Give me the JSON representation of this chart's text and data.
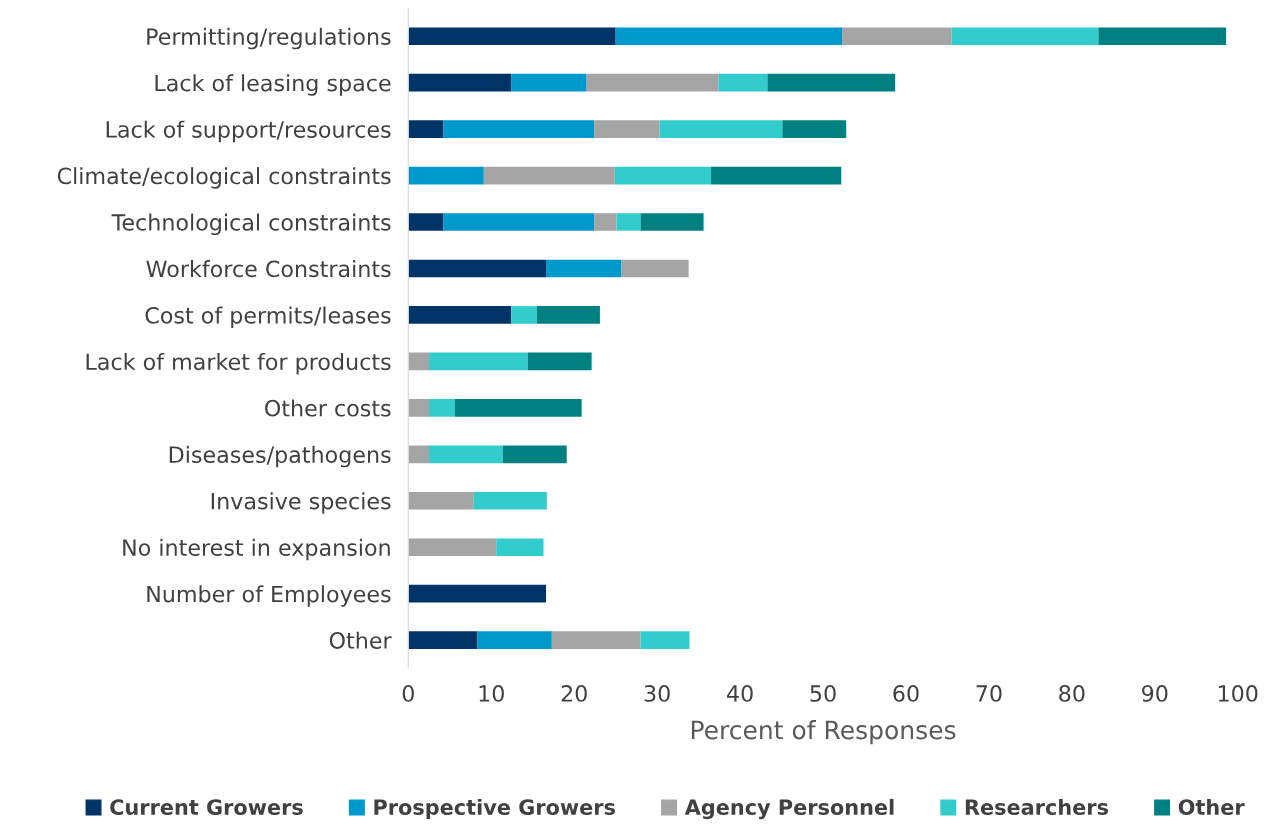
{
  "chart_data": {
    "type": "bar",
    "orientation": "horizontal",
    "stacked": true,
    "xlabel": "Percent of Responses",
    "categories": [
      "Permitting/regulations",
      "Lack of leasing space",
      "Lack of support/resources",
      "Climate/ecological constraints",
      "Technological constraints",
      "Workforce Constraints",
      "Cost of permits/leases",
      "Lack of market for products",
      "Other costs",
      "Diseases/pathogens",
      "Invasive species",
      "No interest in expansion",
      "Number of Employees",
      "Other"
    ],
    "series": [
      {
        "name": "Current Growers",
        "color": "#003366",
        "values": [
          25.0,
          12.4,
          4.2,
          null,
          4.2,
          16.6,
          12.4,
          null,
          null,
          null,
          null,
          null,
          16.6,
          8.3
        ]
      },
      {
        "name": "Prospective Growers",
        "color": "#0099cc",
        "values": [
          27.3,
          9.1,
          18.2,
          9.1,
          18.2,
          9.1,
          null,
          null,
          null,
          null,
          null,
          null,
          null,
          9.0
        ]
      },
      {
        "name": "Agency Personnel",
        "color": "#a5a5a5",
        "values": [
          13.2,
          15.9,
          7.9,
          15.8,
          2.7,
          8.1,
          null,
          2.5,
          2.5,
          2.5,
          7.9,
          10.6,
          null,
          10.7
        ]
      },
      {
        "name": "Researchers",
        "color": "#33cccc",
        "values": [
          17.7,
          5.9,
          14.8,
          11.6,
          2.9,
          null,
          3.1,
          11.9,
          3.1,
          8.9,
          8.8,
          5.7,
          null,
          5.9
        ]
      },
      {
        "name": "Other",
        "color": "#008080",
        "values": [
          15.4,
          15.4,
          7.7,
          15.7,
          7.6,
          null,
          7.6,
          7.7,
          15.3,
          7.7,
          null,
          null,
          null,
          null
        ]
      }
    ],
    "xlim": [
      0,
      100
    ],
    "xticks": [
      0,
      10,
      20,
      30,
      40,
      50,
      60,
      70,
      80,
      90,
      100
    ],
    "grid": false,
    "legend": "bottom"
  }
}
